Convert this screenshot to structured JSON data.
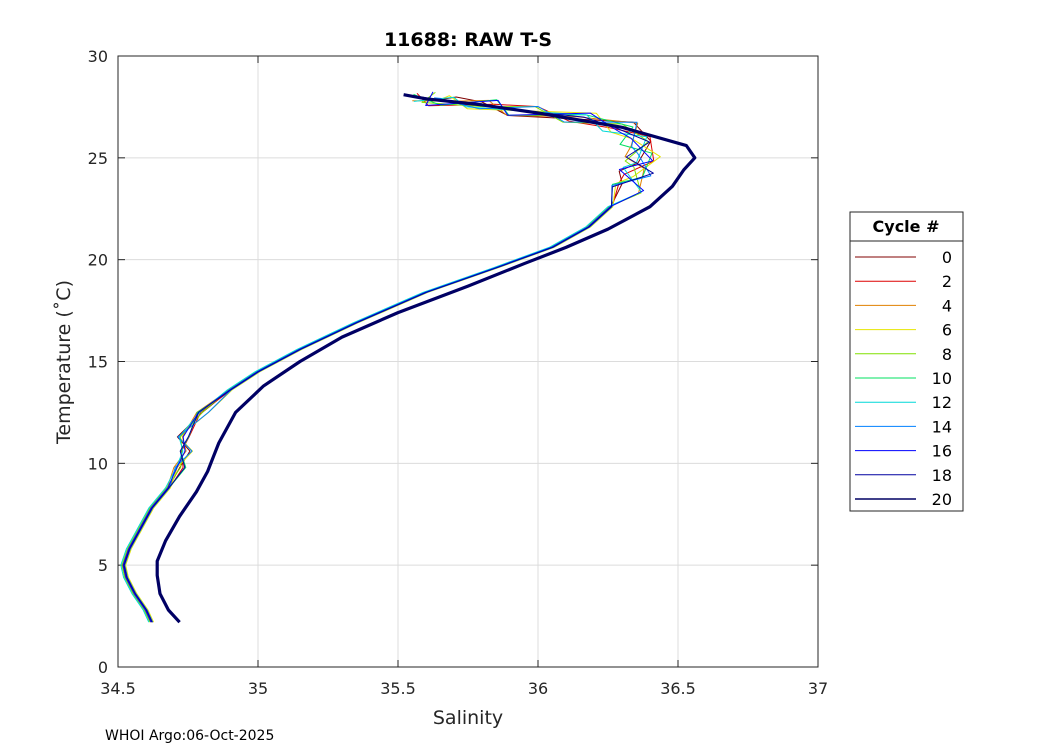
{
  "chart_data": {
    "type": "line",
    "title": "11688: RAW T-S",
    "xlabel": "Salinity",
    "ylabel": "Temperature (˚C)",
    "xlim": [
      34.5,
      37
    ],
    "ylim": [
      0,
      30
    ],
    "xticks": [
      "34.5",
      "35",
      "35.5",
      "36",
      "36.5",
      "37"
    ],
    "yticks": [
      "0",
      "5",
      "10",
      "15",
      "20",
      "25",
      "30"
    ],
    "grid": true,
    "legend": {
      "title": "Cycle #",
      "placement": "outside-right"
    },
    "footer": "WHOI Argo:06-Oct-2025",
    "base_profile": {
      "s": [
        34.62,
        34.6,
        34.56,
        34.53,
        34.52,
        34.54,
        34.58,
        34.62,
        34.68,
        34.72,
        34.74,
        34.73,
        34.8,
        34.9,
        35.0,
        35.15,
        35.35,
        35.6,
        35.85,
        36.05,
        36.18,
        36.26,
        36.32,
        36.35,
        36.37,
        36.35,
        36.3,
        36.15,
        35.95,
        35.8,
        35.65,
        35.6
      ],
      "t": [
        2.2,
        2.8,
        3.6,
        4.4,
        5.0,
        5.8,
        6.8,
        7.8,
        8.8,
        9.8,
        10.6,
        11.3,
        12.5,
        13.6,
        14.5,
        15.6,
        16.9,
        18.4,
        19.6,
        20.6,
        21.6,
        22.6,
        23.5,
        24.3,
        25.0,
        25.8,
        26.5,
        27.0,
        27.3,
        27.6,
        27.8,
        28.0
      ]
    },
    "series": [
      {
        "name": "0",
        "color": "#800000",
        "ds": 0.0,
        "ss": 0.0,
        "thick": false
      },
      {
        "name": "2",
        "color": "#dd0000",
        "ds": 0.005,
        "ss": 0.3,
        "thick": false
      },
      {
        "name": "4",
        "color": "#e08000",
        "ds": -0.004,
        "ss": 0.45,
        "thick": false
      },
      {
        "name": "6",
        "color": "#e6e600",
        "ds": 0.007,
        "ss": 0.6,
        "thick": false
      },
      {
        "name": "8",
        "color": "#80e000",
        "ds": -0.006,
        "ss": 0.75,
        "thick": false
      },
      {
        "name": "10",
        "color": "#00e060",
        "ds": 0.003,
        "ss": 0.9,
        "thick": false
      },
      {
        "name": "12",
        "color": "#00d8d8",
        "ds": -0.01,
        "ss": 1.05,
        "thick": false
      },
      {
        "name": "14",
        "color": "#0080ff",
        "ds": 0.004,
        "ss": 1.2,
        "thick": false
      },
      {
        "name": "16",
        "color": "#0000ff",
        "ds": -0.002,
        "ss": 1.35,
        "thick": false
      },
      {
        "name": "18",
        "color": "#0000a0",
        "ds": 0.002,
        "ss": 1.5,
        "thick": false
      },
      {
        "name": "20",
        "color": "#000064",
        "thick": true,
        "s": [
          34.72,
          34.68,
          34.65,
          34.64,
          34.64,
          34.67,
          34.72,
          34.78,
          34.82,
          34.84,
          34.86,
          34.92,
          35.02,
          35.15,
          35.3,
          35.5,
          35.75,
          35.95,
          36.1,
          36.25,
          36.4,
          36.48,
          36.52,
          36.56,
          36.53,
          36.3,
          36.0,
          35.8,
          35.6,
          35.52
        ],
        "t": [
          2.2,
          2.8,
          3.6,
          4.5,
          5.2,
          6.2,
          7.4,
          8.6,
          9.6,
          10.3,
          11.0,
          12.5,
          13.8,
          15.0,
          16.2,
          17.4,
          18.7,
          19.8,
          20.6,
          21.5,
          22.6,
          23.6,
          24.4,
          25.0,
          25.6,
          26.5,
          27.2,
          27.6,
          27.9,
          28.1
        ]
      }
    ]
  }
}
